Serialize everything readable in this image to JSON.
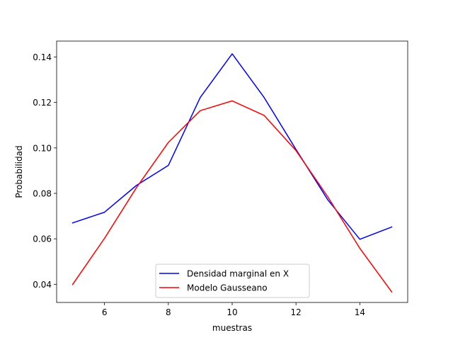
{
  "chart_data": {
    "type": "line",
    "title": "",
    "xlabel": "muestras",
    "ylabel": "Probabilidad",
    "xlim": [
      4.5,
      15.5
    ],
    "ylim": [
      0.032,
      0.147
    ],
    "xticks": [
      6,
      8,
      10,
      12,
      14
    ],
    "xtick_labels": [
      "6",
      "8",
      "10",
      "12",
      "14"
    ],
    "yticks": [
      0.04,
      0.06,
      0.08,
      0.1,
      0.12,
      0.14
    ],
    "ytick_labels": [
      "0.04",
      "0.06",
      "0.08",
      "0.10",
      "0.12",
      "0.14"
    ],
    "grid": false,
    "legend_position": "lower center",
    "x": [
      5,
      6,
      7,
      8,
      9,
      10,
      11,
      12,
      13,
      14,
      15
    ],
    "series": [
      {
        "name": "Densidad marginal en X",
        "color": "#0000ff",
        "values": [
          0.067,
          0.0717,
          0.0835,
          0.0923,
          0.1222,
          0.1414,
          0.1222,
          0.0993,
          0.0771,
          0.0598,
          0.0652
        ]
      },
      {
        "name": "Modelo Gausseano",
        "color": "#ff0000",
        "values": [
          0.0399,
          0.0602,
          0.0825,
          0.1024,
          0.1164,
          0.1207,
          0.1143,
          0.0988,
          0.0784,
          0.0558,
          0.0366
        ]
      }
    ]
  }
}
